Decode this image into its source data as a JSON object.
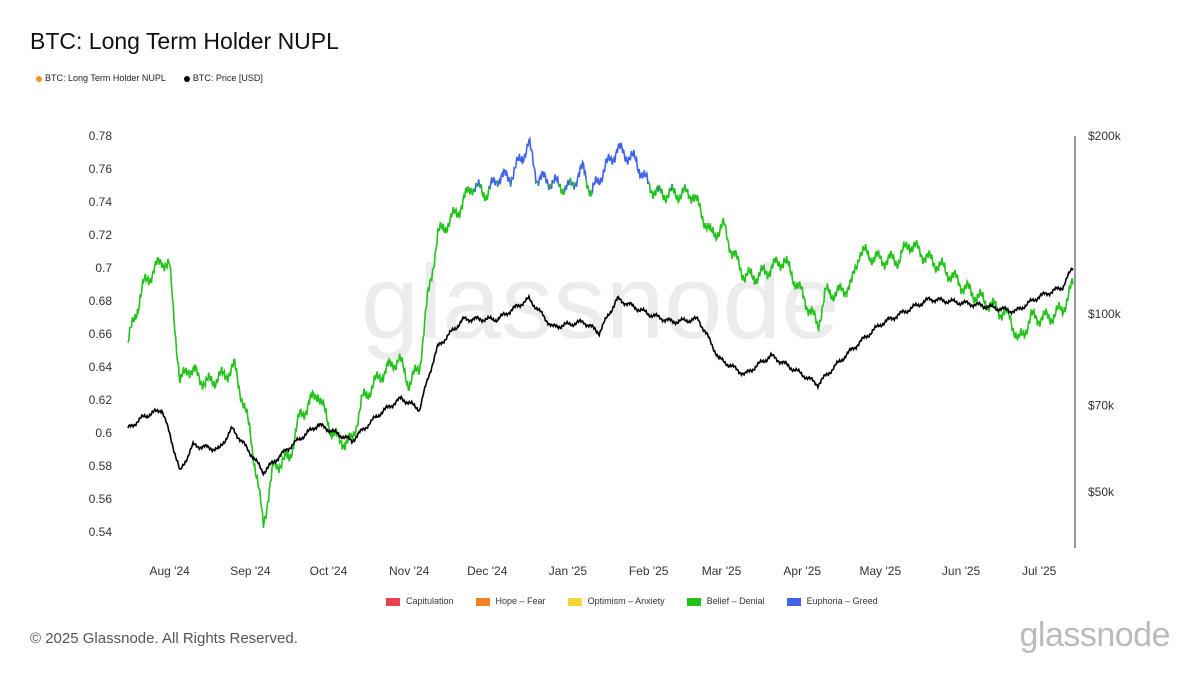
{
  "chart_data": {
    "type": "line",
    "title": "BTC: Long Term Holder NUPL",
    "legend": [
      {
        "label": "BTC: Long Term Holder NUPL",
        "color": "#f7931a"
      },
      {
        "label": "BTC: Price [USD]",
        "color": "#000000"
      }
    ],
    "zone_legend": [
      {
        "label": "Capitulation",
        "color": "#e8414a"
      },
      {
        "label": "Hope – Fear",
        "color": "#f58220"
      },
      {
        "label": "Optimism – Anxiety",
        "color": "#f5d73b"
      },
      {
        "label": "Belief – Denial",
        "color": "#22c21a"
      },
      {
        "label": "Euphoria – Greed",
        "color": "#3f63e8"
      }
    ],
    "x_range": [
      "2024-07-16",
      "2025-07-14"
    ],
    "x_ticks": [
      {
        "date": "2024-08-01",
        "label": "Aug '24"
      },
      {
        "date": "2024-09-01",
        "label": "Sep '24"
      },
      {
        "date": "2024-10-01",
        "label": "Oct '24"
      },
      {
        "date": "2024-11-01",
        "label": "Nov '24"
      },
      {
        "date": "2024-12-01",
        "label": "Dec '24"
      },
      {
        "date": "2025-01-01",
        "label": "Jan '25"
      },
      {
        "date": "2025-02-01",
        "label": "Feb '25"
      },
      {
        "date": "2025-03-01",
        "label": "Mar '25"
      },
      {
        "date": "2025-04-01",
        "label": "Apr '25"
      },
      {
        "date": "2025-05-01",
        "label": "May '25"
      },
      {
        "date": "2025-06-01",
        "label": "Jun '25"
      },
      {
        "date": "2025-07-01",
        "label": "Jul '25"
      }
    ],
    "y_left": {
      "range": [
        0.53,
        0.785
      ],
      "ticks": [
        "0.54",
        "0.56",
        "0.58",
        "0.6",
        "0.62",
        "0.64",
        "0.66",
        "0.68",
        "0.7",
        "0.72",
        "0.74",
        "0.76",
        "0.78"
      ]
    },
    "y_right": {
      "scale": "log",
      "range_k": [
        37,
        200
      ],
      "ticks": [
        {
          "v": 200,
          "label": "$200k"
        },
        {
          "v": 100,
          "label": "$100k"
        },
        {
          "v": 70,
          "label": "$70k"
        },
        {
          "v": 50,
          "label": "$50k"
        }
      ]
    },
    "euphoria_threshold": 0.75,
    "nupl": [
      [
        "2024-07-16",
        0.655
      ],
      [
        "2024-07-22",
        0.69
      ],
      [
        "2024-07-29",
        0.705
      ],
      [
        "2024-08-01",
        0.7
      ],
      [
        "2024-08-05",
        0.63
      ],
      [
        "2024-08-08",
        0.64
      ],
      [
        "2024-08-15",
        0.63
      ],
      [
        "2024-08-22",
        0.635
      ],
      [
        "2024-08-26",
        0.64
      ],
      [
        "2024-09-01",
        0.6
      ],
      [
        "2024-09-06",
        0.545
      ],
      [
        "2024-09-10",
        0.58
      ],
      [
        "2024-09-16",
        0.585
      ],
      [
        "2024-09-20",
        0.61
      ],
      [
        "2024-09-27",
        0.625
      ],
      [
        "2024-10-01",
        0.605
      ],
      [
        "2024-10-05",
        0.595
      ],
      [
        "2024-10-10",
        0.595
      ],
      [
        "2024-10-14",
        0.62
      ],
      [
        "2024-10-21",
        0.635
      ],
      [
        "2024-10-28",
        0.645
      ],
      [
        "2024-11-01",
        0.63
      ],
      [
        "2024-11-05",
        0.64
      ],
      [
        "2024-11-08",
        0.68
      ],
      [
        "2024-11-12",
        0.72
      ],
      [
        "2024-11-20",
        0.735
      ],
      [
        "2024-11-25",
        0.75
      ],
      [
        "2024-12-01",
        0.745
      ],
      [
        "2024-12-05",
        0.755
      ],
      [
        "2024-12-10",
        0.755
      ],
      [
        "2024-12-17",
        0.775
      ],
      [
        "2024-12-20",
        0.755
      ],
      [
        "2024-12-26",
        0.752
      ],
      [
        "2025-01-01",
        0.748
      ],
      [
        "2025-01-07",
        0.76
      ],
      [
        "2025-01-10",
        0.745
      ],
      [
        "2025-01-15",
        0.76
      ],
      [
        "2025-01-20",
        0.772
      ],
      [
        "2025-01-27",
        0.765
      ],
      [
        "2025-02-01",
        0.75
      ],
      [
        "2025-02-05",
        0.745
      ],
      [
        "2025-02-12",
        0.745
      ],
      [
        "2025-02-18",
        0.745
      ],
      [
        "2025-02-25",
        0.72
      ],
      [
        "2025-03-02",
        0.725
      ],
      [
        "2025-03-05",
        0.71
      ],
      [
        "2025-03-10",
        0.695
      ],
      [
        "2025-03-15",
        0.695
      ],
      [
        "2025-03-20",
        0.7
      ],
      [
        "2025-03-25",
        0.705
      ],
      [
        "2025-03-30",
        0.69
      ],
      [
        "2025-04-07",
        0.665
      ],
      [
        "2025-04-10",
        0.685
      ],
      [
        "2025-04-15",
        0.685
      ],
      [
        "2025-04-20",
        0.69
      ],
      [
        "2025-04-23",
        0.71
      ],
      [
        "2025-05-01",
        0.705
      ],
      [
        "2025-05-08",
        0.705
      ],
      [
        "2025-05-12",
        0.715
      ],
      [
        "2025-05-20",
        0.705
      ],
      [
        "2025-05-25",
        0.7
      ],
      [
        "2025-06-01",
        0.69
      ],
      [
        "2025-06-05",
        0.685
      ],
      [
        "2025-06-10",
        0.68
      ],
      [
        "2025-06-15",
        0.675
      ],
      [
        "2025-06-20",
        0.67
      ],
      [
        "2025-06-23",
        0.655
      ],
      [
        "2025-06-28",
        0.67
      ],
      [
        "2025-07-05",
        0.67
      ],
      [
        "2025-07-10",
        0.675
      ],
      [
        "2025-07-14",
        0.69
      ]
    ],
    "price_k": [
      [
        "2024-07-16",
        64
      ],
      [
        "2024-07-22",
        67
      ],
      [
        "2024-07-29",
        69
      ],
      [
        "2024-08-05",
        54
      ],
      [
        "2024-08-10",
        60
      ],
      [
        "2024-08-20",
        59
      ],
      [
        "2024-08-25",
        64
      ],
      [
        "2024-09-06",
        54
      ],
      [
        "2024-09-15",
        59
      ],
      [
        "2024-09-27",
        65
      ],
      [
        "2024-10-10",
        61
      ],
      [
        "2024-10-21",
        68
      ],
      [
        "2024-10-29",
        72
      ],
      [
        "2024-11-05",
        69
      ],
      [
        "2024-11-12",
        88
      ],
      [
        "2024-11-22",
        98
      ],
      [
        "2024-12-05",
        98
      ],
      [
        "2024-12-17",
        106
      ],
      [
        "2024-12-26",
        95
      ],
      [
        "2025-01-07",
        97
      ],
      [
        "2025-01-13",
        93
      ],
      [
        "2025-01-20",
        106
      ],
      [
        "2025-02-01",
        100
      ],
      [
        "2025-02-10",
        97
      ],
      [
        "2025-02-20",
        98
      ],
      [
        "2025-02-28",
        84
      ],
      [
        "2025-03-10",
        79
      ],
      [
        "2025-03-20",
        85
      ],
      [
        "2025-04-07",
        76
      ],
      [
        "2025-04-20",
        87
      ],
      [
        "2025-05-01",
        96
      ],
      [
        "2025-05-20",
        106
      ],
      [
        "2025-06-05",
        104
      ],
      [
        "2025-06-22",
        101
      ],
      [
        "2025-07-01",
        107
      ],
      [
        "2025-07-10",
        111
      ],
      [
        "2025-07-14",
        120
      ]
    ]
  },
  "footer": {
    "copyright": "© 2025 Glassnode. All Rights Reserved.",
    "logo": "glassnode"
  },
  "watermark": "glassnode"
}
